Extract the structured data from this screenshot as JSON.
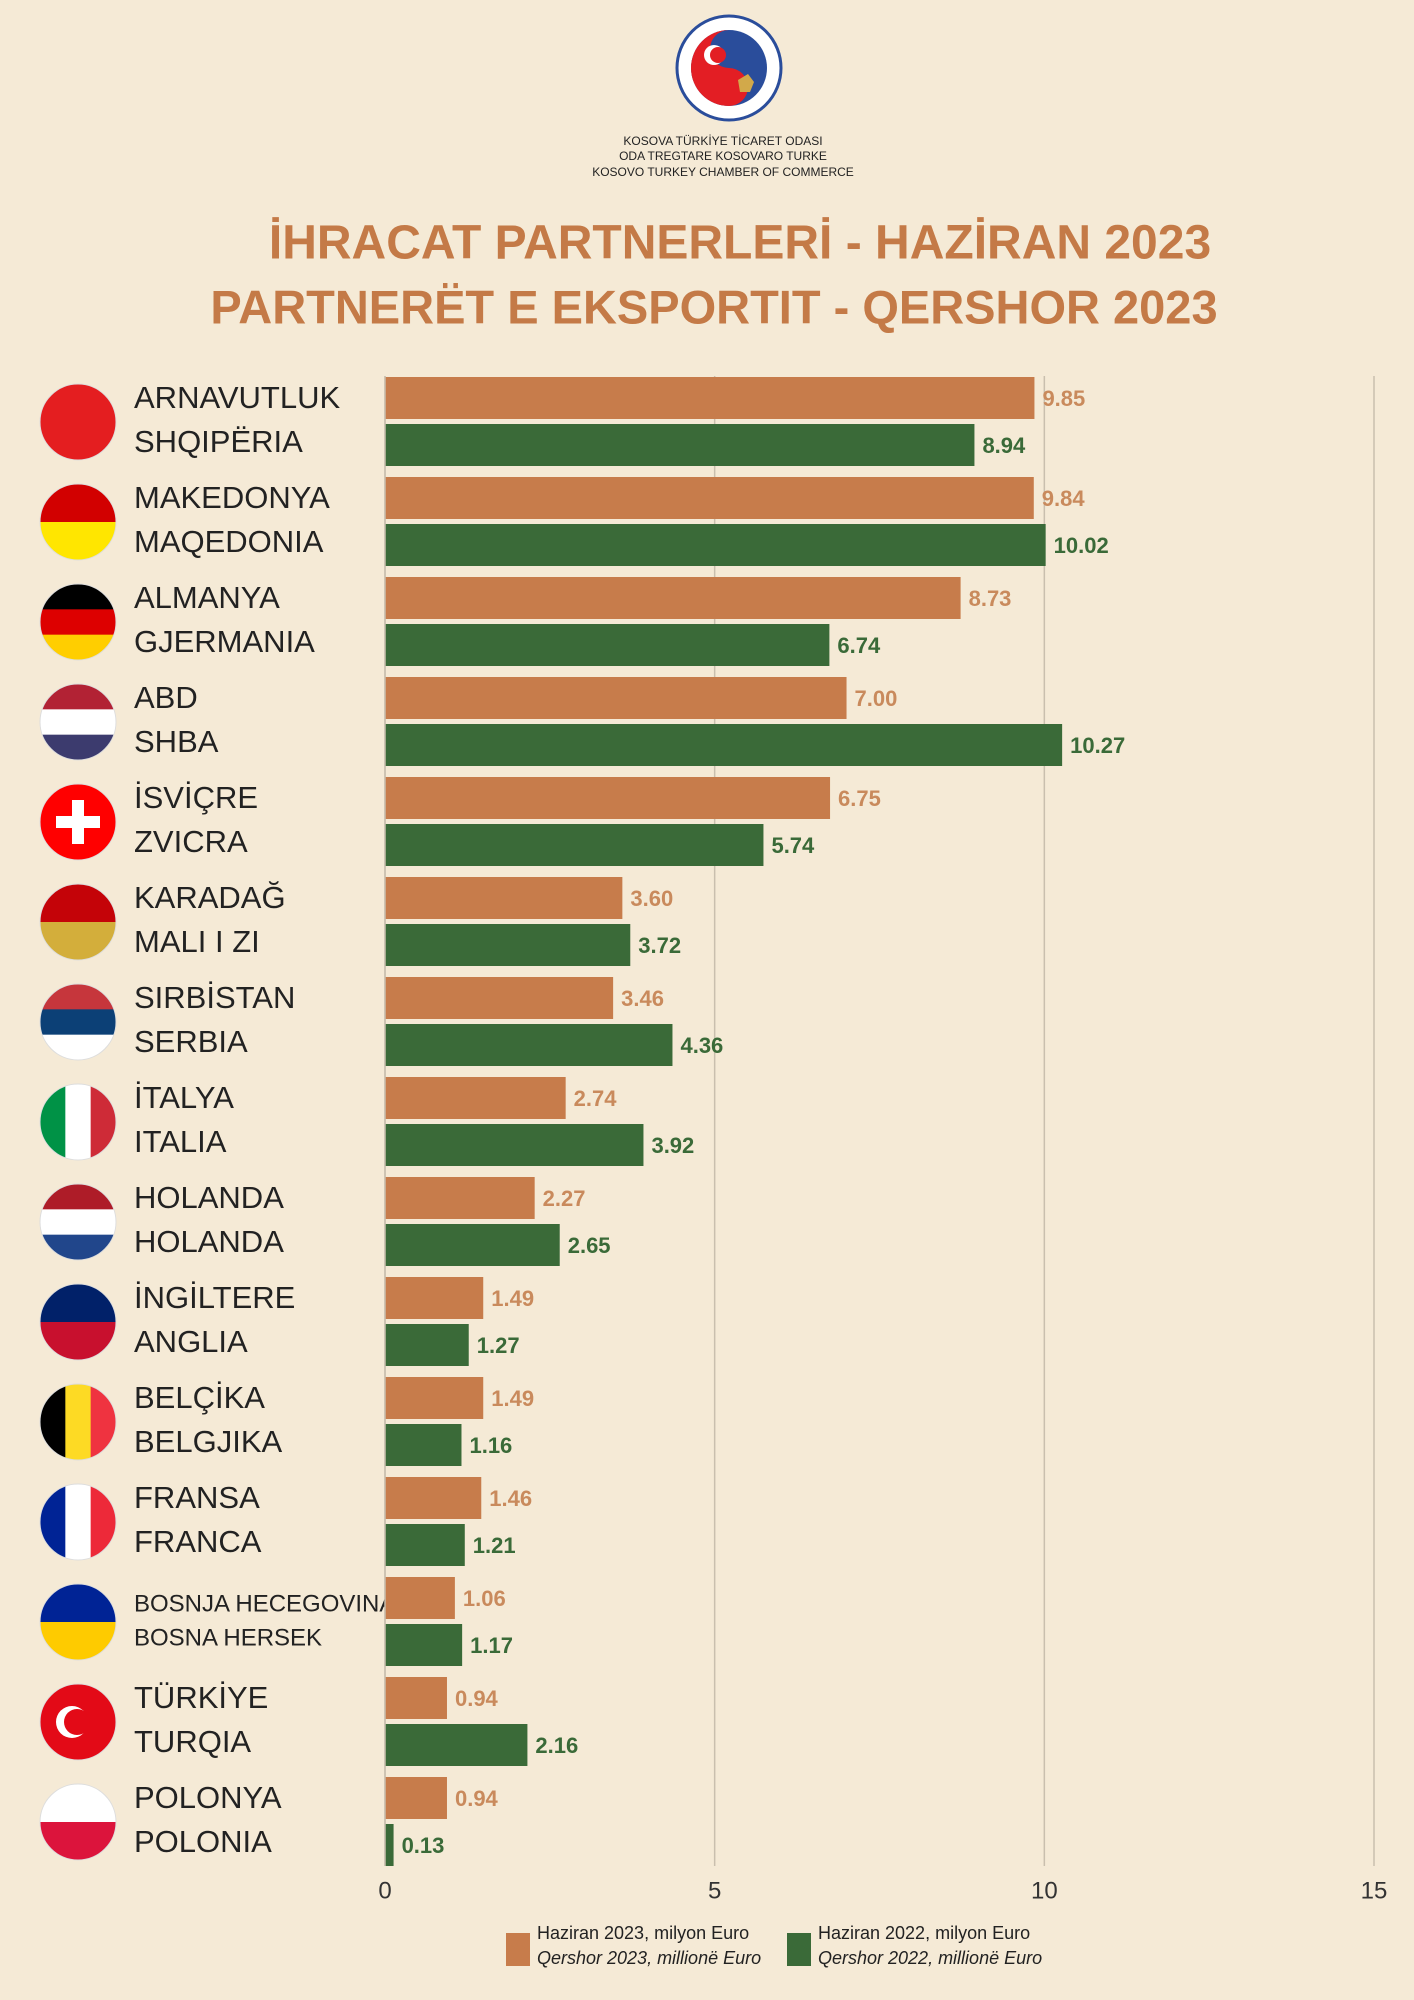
{
  "header": {
    "lines": [
      "KOSOVA TÜRKİYE TİCARET ODASI",
      "ODA TREGTARE KOSOVARO TURKE",
      "KOSOVO TURKEY CHAMBER OF COMMERCE"
    ]
  },
  "chart_data": {
    "type": "hbar",
    "title": [
      "İHRACAT PARTNERLERİ - HAZİRAN 2023",
      "PARTNERËT E EKSPORTIT - QERSHOR 2023"
    ],
    "categories": [
      [
        "ARNAVUTLUK",
        "SHQIPËRIA"
      ],
      [
        "MAKEDONYA",
        "MAQEDONIA"
      ],
      [
        "ALMANYA",
        "GJERMANIA"
      ],
      [
        "ABD",
        "SHBA"
      ],
      [
        "İSVİÇRE",
        "ZVICRA"
      ],
      [
        "KARADAĞ",
        "MALI I ZI"
      ],
      [
        "SIRBİSTAN",
        "SERBIA"
      ],
      [
        "İTALYA",
        "ITALIA"
      ],
      [
        "HOLANDA",
        "HOLANDA"
      ],
      [
        "İNGİLTERE",
        "ANGLIA"
      ],
      [
        "BELÇİKA",
        "BELGJIKA"
      ],
      [
        "FRANSA",
        "FRANCA"
      ],
      [
        "BOSNJA HECEGOVINA",
        "BOSNA HERSEK"
      ],
      [
        "TÜRKİYE",
        "TURQIA"
      ],
      [
        "POLONYA",
        "POLONIA"
      ]
    ],
    "series": [
      {
        "name": [
          "Haziran  2023, milyon Euro",
          "Qershor 2023, millionë Euro"
        ],
        "color": "#c77c4b",
        "label_color": "#c98a5c",
        "values": [
          9.85,
          9.84,
          8.73,
          7.0,
          6.75,
          3.6,
          3.46,
          2.74,
          2.27,
          1.49,
          1.49,
          1.46,
          1.06,
          0.94,
          0.94
        ],
        "value_labels": [
          "9.85",
          "9.84",
          "8.73",
          "7.00",
          "6.75",
          "3.60",
          "3.46",
          "2.74",
          "2.27",
          "1.49",
          "1.49",
          "1.46",
          "1.06",
          "0.94",
          "0.94"
        ]
      },
      {
        "name": [
          "Haziran 2022, milyon Euro",
          "Qershor 2022, millionë Euro"
        ],
        "color": "#3a6a38",
        "label_color": "#3a6a38",
        "values": [
          8.94,
          10.02,
          6.74,
          10.27,
          5.74,
          3.72,
          4.36,
          3.92,
          2.65,
          1.27,
          1.16,
          1.21,
          1.17,
          2.16,
          0.13
        ],
        "value_labels": [
          "8.94",
          "10.02",
          "6.74",
          "10.27",
          "5.74",
          "3.72",
          "4.36",
          "3.92",
          "2.65",
          "1.27",
          "1.16",
          "1.21",
          "1.17",
          "2.16",
          "0.13"
        ]
      }
    ],
    "xlim": [
      0,
      15
    ],
    "xticks": [
      0,
      5,
      10,
      15
    ],
    "grid": true
  }
}
